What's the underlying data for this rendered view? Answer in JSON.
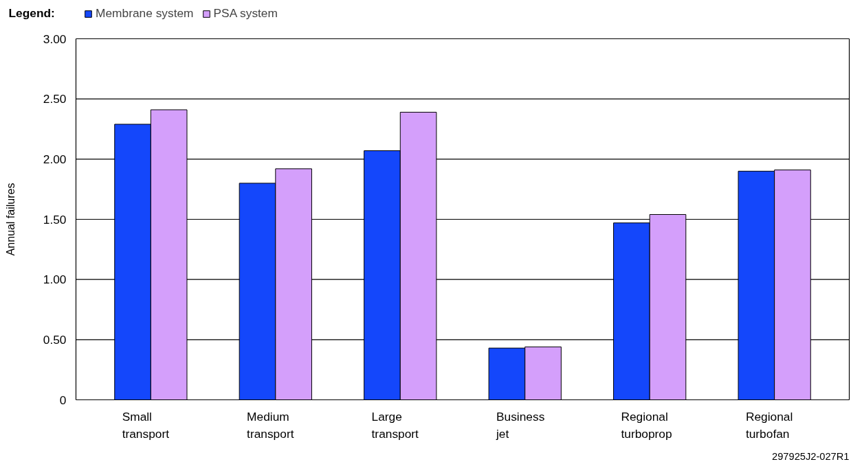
{
  "chart_data": {
    "type": "bar",
    "ylabel": "Annual failures",
    "legend_title": "Legend:",
    "categories": [
      "Small transport",
      "Medium transport",
      "Large transport",
      "Business jet",
      "Regional turboprop",
      "Regional turbofan"
    ],
    "series": [
      {
        "name": "Membrane system",
        "color": "#1447fb",
        "values": [
          2.29,
          1.8,
          2.07,
          0.43,
          1.47,
          1.9
        ]
      },
      {
        "name": "PSA system",
        "color": "#d49ffb",
        "values": [
          2.41,
          1.92,
          2.39,
          0.44,
          1.54,
          1.91
        ]
      }
    ],
    "ylim": [
      0,
      3
    ],
    "yticks": [
      {
        "value": 0,
        "label": "0"
      },
      {
        "value": 0.5,
        "label": "0.50"
      },
      {
        "value": 1,
        "label": "1.00"
      },
      {
        "value": 1.5,
        "label": "1.50"
      },
      {
        "value": 2,
        "label": "2.00"
      },
      {
        "value": 2.5,
        "label": "2.50"
      },
      {
        "value": 3,
        "label": "3.00"
      }
    ],
    "grid": "y",
    "legend": "top left",
    "annotations": [
      "297925J2-027R1"
    ]
  }
}
